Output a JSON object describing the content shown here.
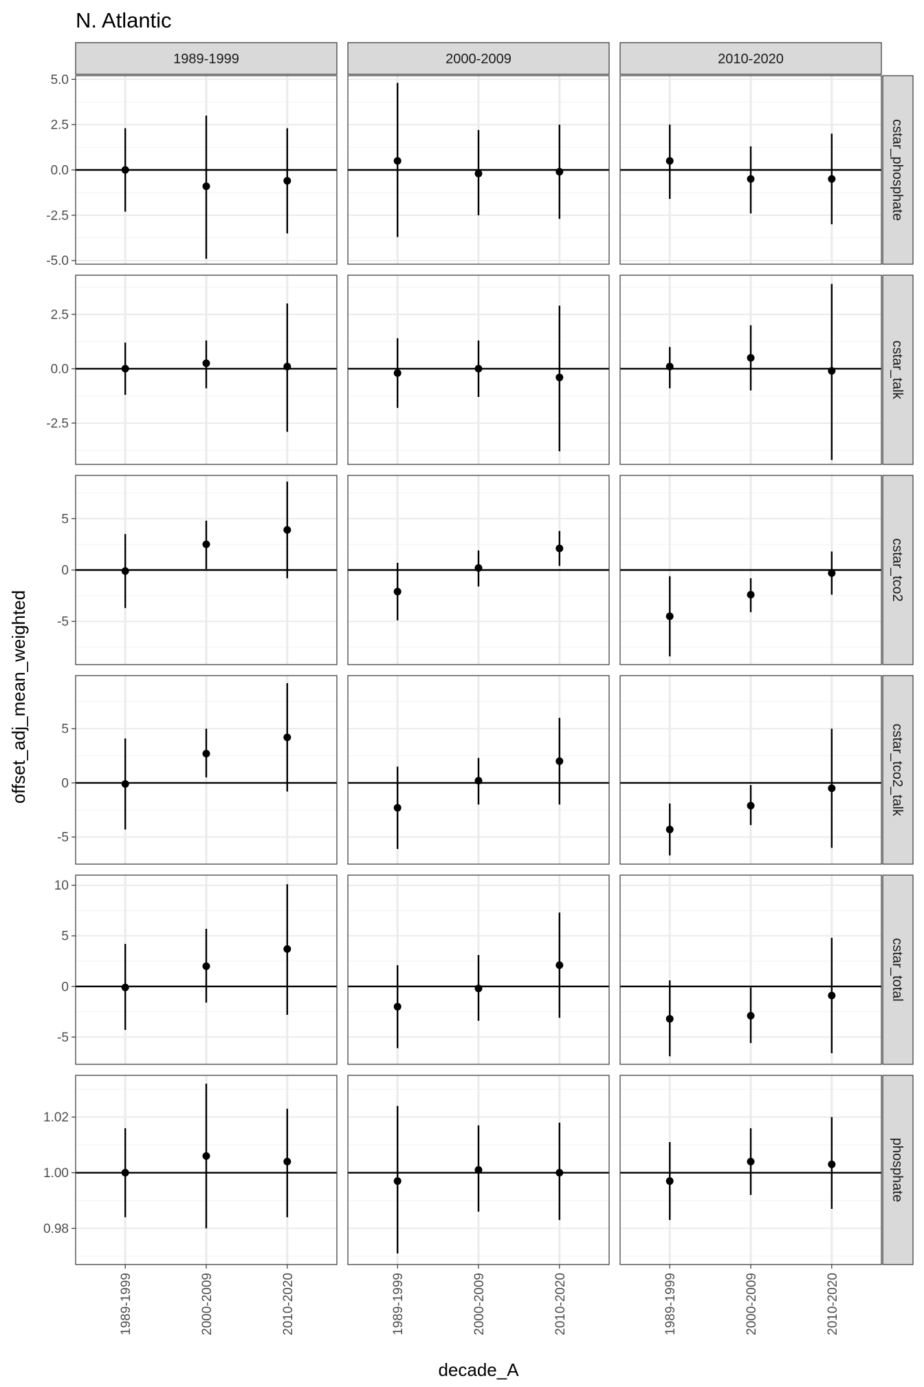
{
  "chart_data": {
    "type": "scatter",
    "subtype": "pointrange-facet-grid",
    "title": "N. Atlantic",
    "xlabel": "decade_A",
    "ylabel": "offset_adj_mean_weighted",
    "column_facets": [
      "1989-1999",
      "2000-2009",
      "2010-2020"
    ],
    "categories": [
      "1989-1999",
      "2000-2009",
      "2010-2020"
    ],
    "reference_line_y": {
      "default": 0,
      "phosphate": 1
    },
    "grid": true,
    "theme": "bw",
    "point_color": "#000000",
    "rows": [
      {
        "name": "cstar_phosphate",
        "ylim": [
          -5.2,
          5.2
        ],
        "yticks": [
          -5.0,
          -2.5,
          0.0,
          2.5,
          5.0
        ],
        "ytick_labels": [
          "-5.0",
          "-2.5",
          "0.0",
          "2.5",
          "5.0"
        ],
        "panels": [
          {
            "facet": "1989-1999",
            "y": [
              0.0,
              -0.9,
              -0.6
            ],
            "ymin": [
              -2.3,
              -4.9,
              -3.5
            ],
            "ymax": [
              2.3,
              3.0,
              2.3
            ]
          },
          {
            "facet": "2000-2009",
            "y": [
              0.5,
              -0.2,
              -0.1
            ],
            "ymin": [
              -3.7,
              -2.5,
              -2.7
            ],
            "ymax": [
              4.8,
              2.2,
              2.5
            ]
          },
          {
            "facet": "2010-2020",
            "y": [
              0.5,
              -0.5,
              -0.5
            ],
            "ymin": [
              -1.6,
              -2.4,
              -3.0
            ],
            "ymax": [
              2.5,
              1.3,
              2.0
            ]
          }
        ]
      },
      {
        "name": "cstar_talk",
        "ylim": [
          -4.4,
          4.3
        ],
        "yticks": [
          -2.5,
          0.0,
          2.5
        ],
        "ytick_labels": [
          "-2.5",
          "0.0",
          "2.5"
        ],
        "panels": [
          {
            "facet": "1989-1999",
            "y": [
              0.0,
              0.25,
              0.1
            ],
            "ymin": [
              -1.2,
              -0.9,
              -2.9
            ],
            "ymax": [
              1.2,
              1.3,
              3.0
            ]
          },
          {
            "facet": "2000-2009",
            "y": [
              -0.2,
              0.0,
              -0.4
            ],
            "ymin": [
              -1.8,
              -1.3,
              -3.8
            ],
            "ymax": [
              1.4,
              1.3,
              2.9
            ]
          },
          {
            "facet": "2010-2020",
            "y": [
              0.1,
              0.5,
              -0.1
            ],
            "ymin": [
              -0.9,
              -1.0,
              -4.2
            ],
            "ymax": [
              1.0,
              2.0,
              3.9
            ]
          }
        ]
      },
      {
        "name": "cstar_tco2",
        "ylim": [
          -9.2,
          9.2
        ],
        "yticks": [
          -5,
          0,
          5
        ],
        "ytick_labels": [
          "-5",
          "0",
          "5"
        ],
        "panels": [
          {
            "facet": "1989-1999",
            "y": [
              -0.1,
              2.5,
              3.9
            ],
            "ymin": [
              -3.7,
              0.1,
              -0.8
            ],
            "ymax": [
              3.5,
              4.8,
              8.6
            ]
          },
          {
            "facet": "2000-2009",
            "y": [
              -2.1,
              0.2,
              2.1
            ],
            "ymin": [
              -4.9,
              -1.6,
              0.4
            ],
            "ymax": [
              0.7,
              1.9,
              3.8
            ]
          },
          {
            "facet": "2010-2020",
            "y": [
              -4.5,
              -2.4,
              -0.3
            ],
            "ymin": [
              -8.4,
              -4.1,
              -2.4
            ],
            "ymax": [
              -0.6,
              -0.8,
              1.8
            ]
          }
        ]
      },
      {
        "name": "cstar_tco2_talk",
        "ylim": [
          -7.5,
          9.9
        ],
        "yticks": [
          -5,
          0,
          5
        ],
        "ytick_labels": [
          "-5",
          "0",
          "5"
        ],
        "panels": [
          {
            "facet": "1989-1999",
            "y": [
              -0.1,
              2.7,
              4.2
            ],
            "ymin": [
              -4.3,
              0.5,
              -0.8
            ],
            "ymax": [
              4.1,
              5.0,
              9.2
            ]
          },
          {
            "facet": "2000-2009",
            "y": [
              -2.3,
              0.2,
              2.0
            ],
            "ymin": [
              -6.1,
              -2.0,
              -2.0
            ],
            "ymax": [
              1.5,
              2.3,
              6.0
            ]
          },
          {
            "facet": "2010-2020",
            "y": [
              -4.3,
              -2.1,
              -0.5
            ],
            "ymin": [
              -6.7,
              -3.9,
              -6.0
            ],
            "ymax": [
              -1.9,
              -0.2,
              5.0
            ]
          }
        ]
      },
      {
        "name": "cstar_total",
        "ylim": [
          -7.7,
          11.0
        ],
        "yticks": [
          -5,
          0,
          5,
          10
        ],
        "ytick_labels": [
          "-5",
          "0",
          "5",
          "10"
        ],
        "panels": [
          {
            "facet": "1989-1999",
            "y": [
              -0.1,
              2.0,
              3.7
            ],
            "ymin": [
              -4.3,
              -1.6,
              -2.8
            ],
            "ymax": [
              4.2,
              5.7,
              10.1
            ]
          },
          {
            "facet": "2000-2009",
            "y": [
              -2.0,
              -0.2,
              2.1
            ],
            "ymin": [
              -6.1,
              -3.4,
              -3.1
            ],
            "ymax": [
              2.1,
              3.1,
              7.3
            ]
          },
          {
            "facet": "2010-2020",
            "y": [
              -3.2,
              -2.9,
              -0.9
            ],
            "ymin": [
              -6.9,
              -5.6,
              -6.6
            ],
            "ymax": [
              0.6,
              -0.1,
              4.8
            ]
          }
        ]
      },
      {
        "name": "phosphate",
        "ylim": [
          0.967,
          1.035
        ],
        "yticks": [
          0.98,
          1.0,
          1.02
        ],
        "ytick_labels": [
          "0.98",
          "1.00",
          "1.02"
        ],
        "panels": [
          {
            "facet": "1989-1999",
            "y": [
              1.0,
              1.006,
              1.004
            ],
            "ymin": [
              0.984,
              0.98,
              0.984
            ],
            "ymax": [
              1.016,
              1.032,
              1.023
            ]
          },
          {
            "facet": "2000-2009",
            "y": [
              0.997,
              1.001,
              1.0
            ],
            "ymin": [
              0.971,
              0.986,
              0.983
            ],
            "ymax": [
              1.024,
              1.017,
              1.018
            ]
          },
          {
            "facet": "2010-2020",
            "y": [
              0.997,
              1.004,
              1.003
            ],
            "ymin": [
              0.983,
              0.992,
              0.987
            ],
            "ymax": [
              1.011,
              1.016,
              1.02
            ]
          }
        ]
      }
    ]
  }
}
